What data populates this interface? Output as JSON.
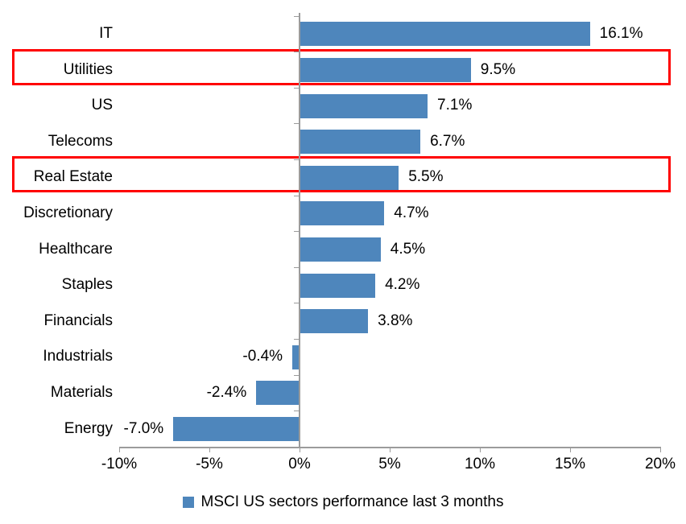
{
  "chart_data": {
    "type": "bar",
    "orientation": "horizontal",
    "title": "",
    "categories": [
      "IT",
      "Utilities",
      "US",
      "Telecoms",
      "Real Estate",
      "Discretionary",
      "Healthcare",
      "Staples",
      "Financials",
      "Industrials",
      "Materials",
      "Energy"
    ],
    "values": [
      16.1,
      9.5,
      7.1,
      6.7,
      5.5,
      4.7,
      4.5,
      4.2,
      3.8,
      -0.4,
      -2.4,
      -7.0
    ],
    "value_labels": [
      "16.1%",
      "9.5%",
      "7.1%",
      "6.7%",
      "5.5%",
      "4.7%",
      "4.5%",
      "4.2%",
      "3.8%",
      "-0.4%",
      "-2.4%",
      "-7.0%"
    ],
    "highlighted_categories": [
      "Utilities",
      "Real Estate"
    ],
    "x_axis": {
      "range": [
        -10,
        20
      ],
      "ticks": [
        -10,
        -5,
        0,
        5,
        10,
        15,
        20
      ],
      "tick_labels": [
        "-10%",
        "-5%",
        "0%",
        "5%",
        "10%",
        "15%",
        "20%"
      ]
    },
    "grid": false,
    "legend": "MSCI US sectors performance last 3 months",
    "legend_position": "bottom",
    "colors": {
      "bar": "#4e86bc",
      "highlight_box": "#ff0000",
      "axis": "#9b9b9b",
      "text": "#000000"
    }
  }
}
